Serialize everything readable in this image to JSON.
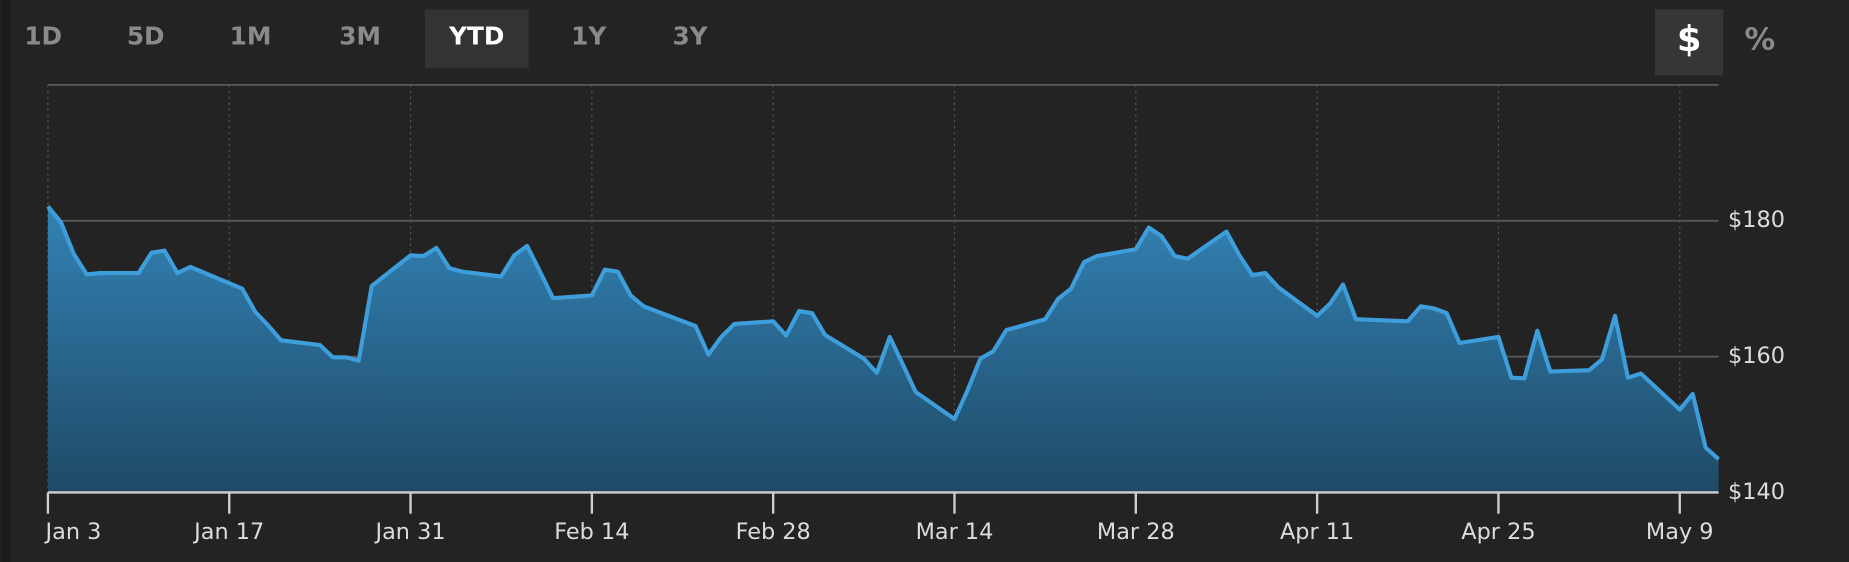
{
  "controls": {
    "ranges": [
      "1D",
      "5D",
      "1M",
      "3M",
      "YTD",
      "1Y",
      "3Y"
    ],
    "active_range": "YTD",
    "units": [
      "$",
      "%"
    ],
    "active_unit": "$"
  },
  "chart_data": {
    "type": "area",
    "color": "#3d9edb",
    "grid": true,
    "x": [
      "Jan 3",
      "Jan 4",
      "Jan 5",
      "Jan 6",
      "Jan 7",
      "Jan 10",
      "Jan 11",
      "Jan 12",
      "Jan 13",
      "Jan 14",
      "Jan 18",
      "Jan 19",
      "Jan 20",
      "Jan 21",
      "Jan 24",
      "Jan 25",
      "Jan 26",
      "Jan 27",
      "Jan 28",
      "Jan 31",
      "Feb 1",
      "Feb 2",
      "Feb 3",
      "Feb 4",
      "Feb 7",
      "Feb 8",
      "Feb 9",
      "Feb 10",
      "Feb 11",
      "Feb 14",
      "Feb 15",
      "Feb 16",
      "Feb 17",
      "Feb 18",
      "Feb 22",
      "Feb 23",
      "Feb 24",
      "Feb 25",
      "Feb 28",
      "Mar 1",
      "Mar 2",
      "Mar 3",
      "Mar 4",
      "Mar 7",
      "Mar 8",
      "Mar 9",
      "Mar 10",
      "Mar 11",
      "Mar 14",
      "Mar 15",
      "Mar 16",
      "Mar 17",
      "Mar 18",
      "Mar 21",
      "Mar 22",
      "Mar 23",
      "Mar 24",
      "Mar 25",
      "Mar 28",
      "Mar 29",
      "Mar 30",
      "Mar 31",
      "Apr 1",
      "Apr 4",
      "Apr 5",
      "Apr 6",
      "Apr 7",
      "Apr 8",
      "Apr 11",
      "Apr 12",
      "Apr 13",
      "Apr 14",
      "Apr 18",
      "Apr 19",
      "Apr 20",
      "Apr 21",
      "Apr 22",
      "Apr 25",
      "Apr 26",
      "Apr 27",
      "Apr 28",
      "Apr 29",
      "May 2",
      "May 3",
      "May 4",
      "May 5",
      "May 6",
      "May 9",
      "May 10",
      "May 11",
      "May 12"
    ],
    "values": [
      182.1,
      179.8,
      175.1,
      172.1,
      172.3,
      172.3,
      175.3,
      175.6,
      172.3,
      173.2,
      170.0,
      166.6,
      164.6,
      162.4,
      161.7,
      159.9,
      159.9,
      159.4,
      170.4,
      174.9,
      174.8,
      176.0,
      173.0,
      172.5,
      171.8,
      174.9,
      176.3,
      172.5,
      168.6,
      169.0,
      172.8,
      172.5,
      169.0,
      167.4,
      164.5,
      160.3,
      162.9,
      164.8,
      165.2,
      163.1,
      166.7,
      166.4,
      163.2,
      159.7,
      157.6,
      162.9,
      158.9,
      154.8,
      150.8,
      155.0,
      159.7,
      160.8,
      163.9,
      165.5,
      168.5,
      170.0,
      173.9,
      174.8,
      175.8,
      179.0,
      177.7,
      174.8,
      174.4,
      178.4,
      174.9,
      172.0,
      172.3,
      170.2,
      166.0,
      167.8,
      170.6,
      165.5,
      165.2,
      167.4,
      167.1,
      166.4,
      162.0,
      162.9,
      156.9,
      156.8,
      163.8,
      157.8,
      158.0,
      159.6,
      166.0,
      156.9,
      157.5,
      152.2,
      154.5,
      146.6,
      144.9
    ],
    "xlim": [
      "Jan 3",
      "May 12"
    ],
    "xticks": [
      "Jan 3",
      "Jan 17",
      "Jan 31",
      "Feb 14",
      "Feb 28",
      "Mar 14",
      "Mar 28",
      "Apr 11",
      "Apr 25",
      "May 9"
    ],
    "ylim": [
      140,
      200
    ],
    "yticks": [
      {
        "value": 140,
        "label": "$140"
      },
      {
        "value": 160,
        "label": "$160"
      },
      {
        "value": 180,
        "label": "$180"
      }
    ]
  }
}
